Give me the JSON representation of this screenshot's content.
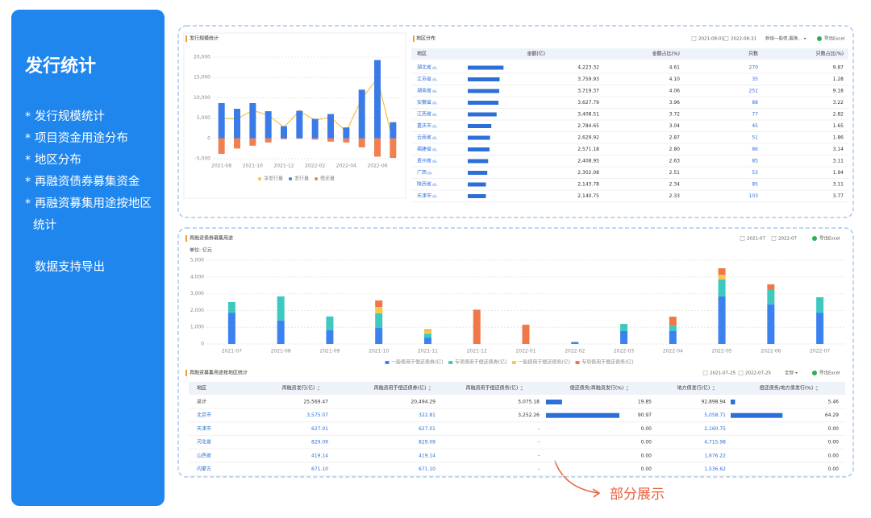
{
  "sidebar": {
    "title": "发行统计",
    "items": [
      "* 发行规模统计",
      "* 项目资金用途分布",
      "* 地区分布",
      "* 再融资债券募集资金",
      "* 再融资募集用途按地区统计"
    ],
    "note": "数据支持导出"
  },
  "chart_data": [
    {
      "type": "bar",
      "title": "发行规模统计",
      "categories": [
        "2021-08",
        null,
        "2021-10",
        null,
        "2021-12",
        null,
        "2022-02",
        null,
        "2022-04",
        null,
        "2022-06",
        null
      ],
      "series": [
        {
          "name": "净发行量",
          "type": "line",
          "color": "#f5c242",
          "values": [
            4900,
            4800,
            6900,
            5700,
            2800,
            6700,
            4500,
            5200,
            1700,
            9800,
            14800,
            -800
          ]
        },
        {
          "name": "发行量",
          "type": "bar",
          "color": "#3a7be8",
          "values": [
            8700,
            7300,
            8700,
            6700,
            3000,
            6800,
            4800,
            6000,
            2700,
            12000,
            19300,
            4000
          ]
        },
        {
          "name": "偿还量",
          "type": "bar",
          "color": "#f08050",
          "values": [
            -3800,
            -2500,
            -1800,
            -1000,
            -200,
            -100,
            -300,
            -800,
            -1000,
            -2200,
            -4500,
            -4800
          ]
        }
      ],
      "ylim": [
        -5000,
        20000
      ],
      "yticks": [
        {
          "value": -5000,
          "label": "-5,000"
        },
        0,
        {
          "value": 5000,
          "label": "5,000"
        },
        {
          "value": 10000,
          "label": "10,000"
        },
        {
          "value": 15000,
          "label": "15,000"
        },
        {
          "value": 20000,
          "label": "20,000"
        }
      ],
      "grid": true
    },
    {
      "type": "stacked_bar",
      "title": "再融资债券募集用途",
      "subtitle": "单位: 亿元",
      "categories": [
        "2021-07",
        "2021-08",
        "2021-09",
        "2021-10",
        "2021-11",
        "2021-12",
        "2022-01",
        "2022-02",
        "2022-03",
        "2022-04",
        "2022-05",
        "2022-06",
        "2022-07"
      ],
      "series": [
        {
          "name": "一般债用于偿还债券(亿)",
          "color": "#3b82f0",
          "values": [
            1870,
            1400,
            820,
            960,
            380,
            0,
            0,
            120,
            770,
            770,
            2840,
            2360,
            1870
          ]
        },
        {
          "name": "专项债用于偿还债券(亿)",
          "color": "#3ec9c0",
          "values": [
            630,
            1440,
            820,
            870,
            240,
            0,
            0,
            0,
            430,
            330,
            1010,
            860,
            920
          ]
        },
        {
          "name": "一般债用于偿还债务(亿)",
          "color": "#f7c948",
          "values": [
            0,
            0,
            0,
            380,
            200,
            0,
            0,
            0,
            0,
            0,
            280,
            0,
            0
          ]
        },
        {
          "name": "专项债用于偿还债务(亿)",
          "color": "#f07848",
          "values": [
            0,
            0,
            0,
            390,
            50,
            2050,
            1150,
            0,
            0,
            530,
            390,
            340,
            0
          ]
        }
      ],
      "ylim": [
        0,
        5000
      ],
      "yticks": [
        0,
        {
          "value": 1000,
          "label": "1,000"
        },
        {
          "value": 2000,
          "label": "2,000"
        },
        {
          "value": 3000,
          "label": "3,000"
        },
        {
          "value": 4000,
          "label": "4,000"
        },
        {
          "value": 5000,
          "label": "5,000"
        }
      ],
      "grid": true,
      "date_from": "2021-07",
      "date_to": "2022-07",
      "export": "导出Excel"
    }
  ],
  "region_table": {
    "title": "地区分布",
    "date_from": "2021-08-01",
    "date_to": "2022-08-31",
    "filter": "新增一般债,置换...",
    "export": "导出Excel",
    "columns": [
      "地区",
      "金额(亿)",
      "金额占比(%)",
      "只数",
      "只数占比(%)"
    ],
    "rows": [
      [
        "湖北省",
        {
          "value": 4223.32,
          "label": "4,223.32"
        },
        "4.61",
        "270",
        "9.87"
      ],
      [
        "江苏省",
        {
          "value": 3759.93,
          "label": "3,759.93"
        },
        "4.10",
        "35",
        "1.28"
      ],
      [
        "湖南省",
        {
          "value": 3719.37,
          "label": "3,719.37"
        },
        "4.06",
        "251",
        "9.18"
      ],
      [
        "安徽省",
        {
          "value": 3627.79,
          "label": "3,627.79"
        },
        "3.96",
        "88",
        "3.22"
      ],
      [
        "江西省",
        {
          "value": 3408.51,
          "label": "3,408.51"
        },
        "3.72",
        "77",
        "2.82"
      ],
      [
        "重庆市",
        {
          "value": 2784.65,
          "label": "2,784.65"
        },
        "3.04",
        "45",
        "1.65"
      ],
      [
        "云南省",
        {
          "value": 2629.92,
          "label": "2,629.92"
        },
        "2.87",
        "51",
        "1.86"
      ],
      [
        "福建省",
        {
          "value": 2571.18,
          "label": "2,571.18"
        },
        "2.80",
        "86",
        "3.14"
      ],
      [
        "贵州省",
        {
          "value": 2408.95,
          "label": "2,408.95"
        },
        "2.63",
        "85",
        "3.11"
      ],
      [
        "广西",
        {
          "value": 2302.08,
          "label": "2,302.08"
        },
        "2.51",
        "53",
        "1.94"
      ],
      [
        "陕西省",
        {
          "value": 2143.78,
          "label": "2,143.78"
        },
        "2.34",
        "85",
        "3.11"
      ],
      [
        "天津市",
        {
          "value": 2140.75,
          "label": "2,140.75"
        },
        "2.33",
        "103",
        "3.77"
      ]
    ]
  },
  "usage_table": {
    "title": "再融资募集用途按地区统计",
    "date_from": "2021-07-25",
    "date_to": "2022-07-25",
    "filter": "全部",
    "export": "导出Excel",
    "columns": [
      "地区",
      "再融资发行(亿)",
      "再融资用于偿还债券(亿)",
      "再融资用于偿还债务(亿)",
      "偿还债务/再融资发行(%)",
      "地方债发行(亿)",
      "偿还债务/地方债发行(%)"
    ],
    "rows": [
      [
        "总计",
        "25,569.47",
        "20,494.29",
        "5,075.18",
        {
          "value": 19.85,
          "label": "19.85"
        },
        "92,898.94",
        {
          "value": 5.46,
          "label": "5.46"
        }
      ],
      [
        "北京市",
        "3,575.07",
        "322.81",
        "3,252.26",
        {
          "value": 90.97,
          "label": "90.97"
        },
        "5,058.71",
        {
          "value": 64.29,
          "label": "64.29"
        }
      ],
      [
        "天津市",
        "627.01",
        "627.01",
        "-",
        {
          "value": 0,
          "label": "0.00"
        },
        "2,160.75",
        {
          "value": 0,
          "label": "0.00"
        }
      ],
      [
        "河北省",
        "829.09",
        "829.09",
        "-",
        {
          "value": 0,
          "label": "0.00"
        },
        "4,715.98",
        {
          "value": 0,
          "label": "0.00"
        }
      ],
      [
        "山西省",
        "419.14",
        "419.14",
        "-",
        {
          "value": 0,
          "label": "0.00"
        },
        "1,676.22",
        {
          "value": 0,
          "label": "0.00"
        }
      ],
      [
        "内蒙古",
        "671.10",
        "671.10",
        "-",
        {
          "value": 0,
          "label": "0.00"
        },
        "1,536.62",
        {
          "value": 0,
          "label": "0.00"
        }
      ]
    ]
  },
  "annotation": "部分展示"
}
